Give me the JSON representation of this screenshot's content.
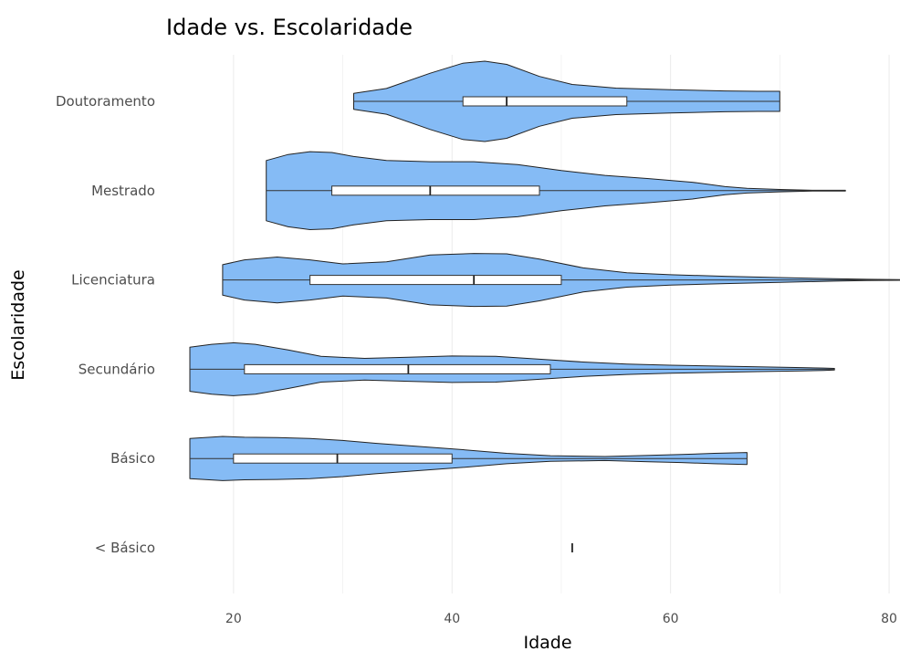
{
  "chart_data": {
    "type": "violin",
    "title": "Idade vs. Escolaridade",
    "xlabel": "Idade",
    "ylabel": "Escolaridade",
    "xlim": [
      14.5,
      81
    ],
    "x_ticks": [
      20,
      40,
      60,
      80
    ],
    "grid": "vertical",
    "colors": {
      "violin_fill": "#85bbf5",
      "violin_stroke": "#222222",
      "box_fill": "#ffffff"
    },
    "categories": [
      "< Básico",
      "Básico",
      "Secundário",
      "Licenciatura",
      "Mestrado",
      "Doutoramento"
    ],
    "series": [
      {
        "category": "Doutoramento",
        "box": {
          "q1": 41,
          "median": 45,
          "q3": 56,
          "whisker_low": 31,
          "whisker_high": 70
        },
        "density": [
          [
            31,
            0.2
          ],
          [
            34,
            0.32
          ],
          [
            38,
            0.7
          ],
          [
            41,
            0.95
          ],
          [
            43,
            1.0
          ],
          [
            45,
            0.92
          ],
          [
            48,
            0.62
          ],
          [
            51,
            0.42
          ],
          [
            55,
            0.33
          ],
          [
            60,
            0.29
          ],
          [
            65,
            0.26
          ],
          [
            68,
            0.25
          ],
          [
            70,
            0.25
          ]
        ]
      },
      {
        "category": "Mestrado",
        "box": {
          "q1": 29,
          "median": 38,
          "q3": 48,
          "whisker_low": 23,
          "whisker_high": 76
        },
        "density": [
          [
            23,
            0.75
          ],
          [
            25,
            0.9
          ],
          [
            27,
            0.97
          ],
          [
            29,
            0.95
          ],
          [
            31,
            0.85
          ],
          [
            34,
            0.75
          ],
          [
            38,
            0.72
          ],
          [
            42,
            0.72
          ],
          [
            46,
            0.65
          ],
          [
            50,
            0.5
          ],
          [
            54,
            0.38
          ],
          [
            58,
            0.3
          ],
          [
            62,
            0.21
          ],
          [
            65,
            0.1
          ],
          [
            67,
            0.06
          ],
          [
            70,
            0.03
          ],
          [
            73,
            0.01
          ],
          [
            76,
            0.01
          ]
        ]
      },
      {
        "category": "Licenciatura",
        "box": {
          "q1": 27,
          "median": 42,
          "q3": 50,
          "whisker_low": 19,
          "whisker_high": 81
        },
        "density": [
          [
            19,
            0.38
          ],
          [
            21,
            0.5
          ],
          [
            24,
            0.57
          ],
          [
            27,
            0.5
          ],
          [
            30,
            0.4
          ],
          [
            34,
            0.45
          ],
          [
            38,
            0.62
          ],
          [
            42,
            0.66
          ],
          [
            45,
            0.65
          ],
          [
            48,
            0.52
          ],
          [
            52,
            0.3
          ],
          [
            56,
            0.18
          ],
          [
            60,
            0.13
          ],
          [
            65,
            0.09
          ],
          [
            70,
            0.06
          ],
          [
            75,
            0.03
          ],
          [
            78,
            0.015
          ],
          [
            81,
            0.01
          ]
        ]
      },
      {
        "category": "Secundário",
        "box": {
          "q1": 21,
          "median": 36,
          "q3": 49,
          "whisker_low": 16,
          "whisker_high": 75
        },
        "density": [
          [
            16,
            0.55
          ],
          [
            18,
            0.62
          ],
          [
            20,
            0.66
          ],
          [
            22,
            0.62
          ],
          [
            25,
            0.48
          ],
          [
            28,
            0.32
          ],
          [
            32,
            0.27
          ],
          [
            36,
            0.3
          ],
          [
            40,
            0.33
          ],
          [
            44,
            0.32
          ],
          [
            48,
            0.25
          ],
          [
            52,
            0.18
          ],
          [
            56,
            0.13
          ],
          [
            60,
            0.1
          ],
          [
            64,
            0.08
          ],
          [
            68,
            0.06
          ],
          [
            72,
            0.04
          ],
          [
            74,
            0.03
          ],
          [
            75,
            0.02
          ]
        ]
      },
      {
        "category": "Básico",
        "box": {
          "q1": 20,
          "median": 29.5,
          "q3": 40,
          "whisker_low": 16,
          "whisker_high": 67
        },
        "density": [
          [
            16,
            0.5
          ],
          [
            19,
            0.55
          ],
          [
            21,
            0.53
          ],
          [
            24,
            0.52
          ],
          [
            27,
            0.5
          ],
          [
            30,
            0.45
          ],
          [
            33,
            0.38
          ],
          [
            37,
            0.3
          ],
          [
            41,
            0.22
          ],
          [
            45,
            0.13
          ],
          [
            49,
            0.07
          ],
          [
            54,
            0.05
          ],
          [
            58,
            0.08
          ],
          [
            61,
            0.1
          ],
          [
            64,
            0.13
          ],
          [
            67,
            0.15
          ]
        ]
      },
      {
        "category": "< Básico",
        "box": {
          "q1": 51,
          "median": 51,
          "q3": 51,
          "whisker_low": 51,
          "whisker_high": 51
        },
        "density": []
      }
    ]
  }
}
